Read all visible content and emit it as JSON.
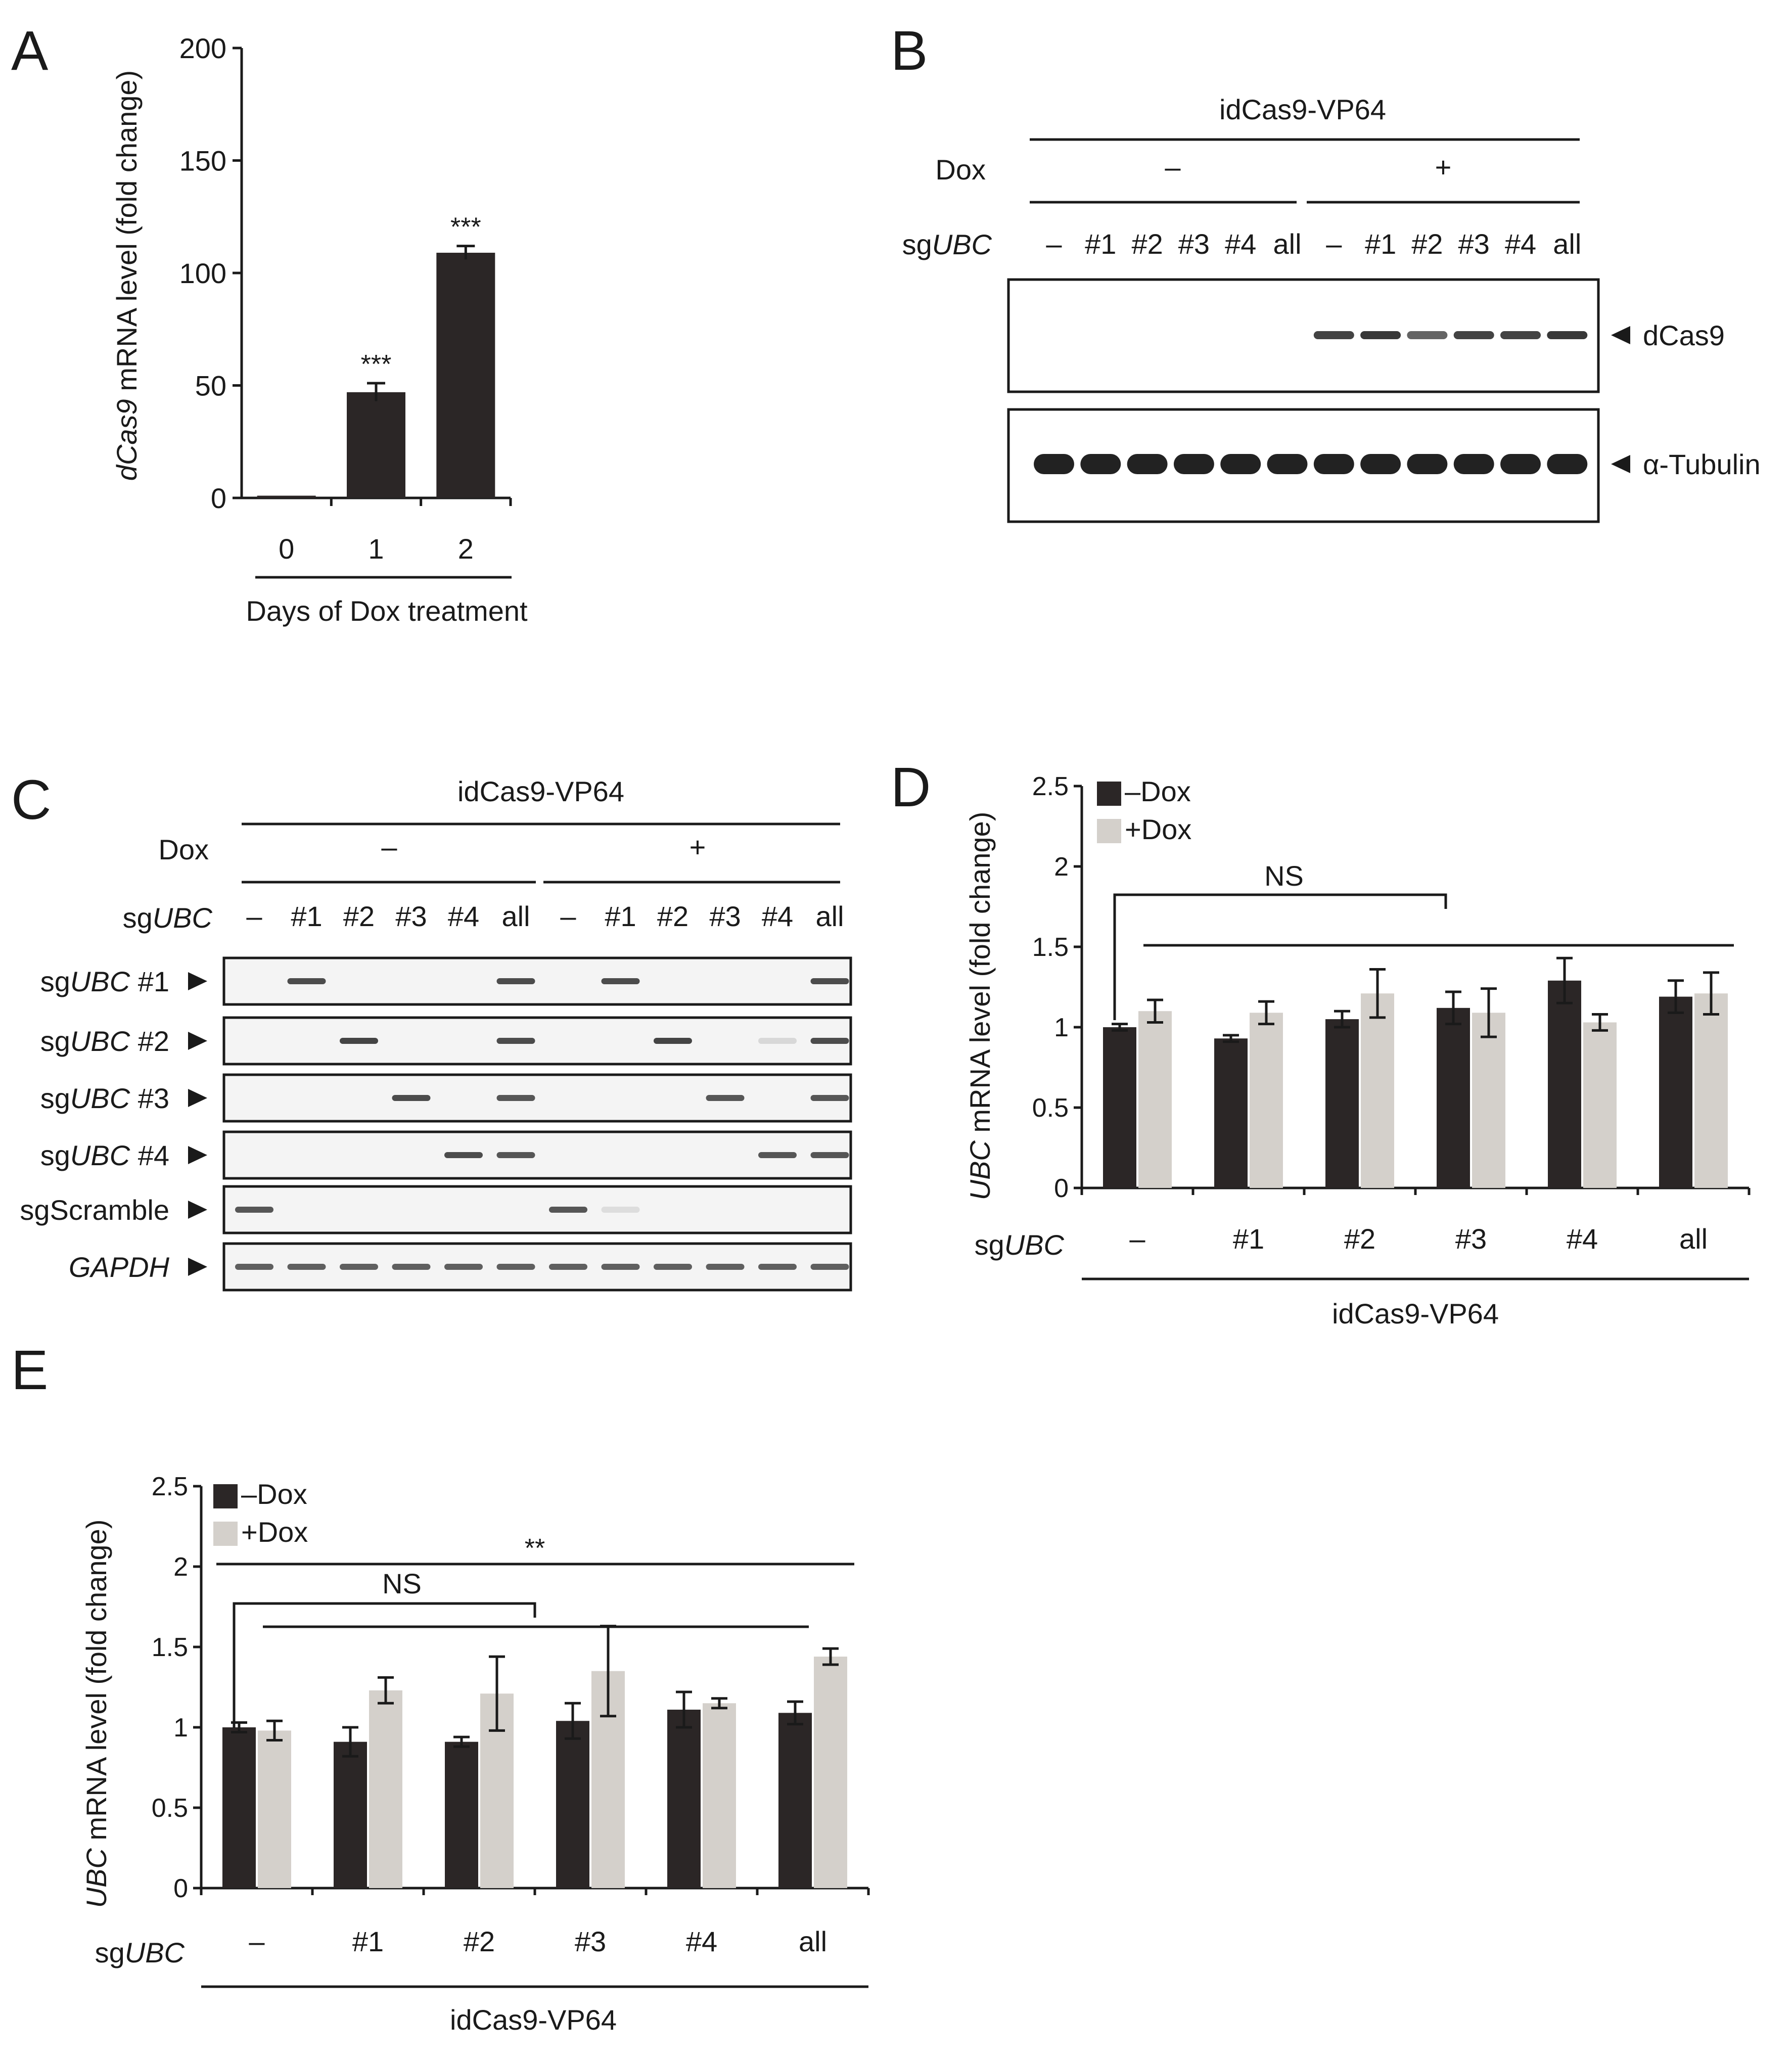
{
  "colors": {
    "dark": "#2b2626",
    "light": "#d4d0cb",
    "ink": "#1a1a1a",
    "band": "#222222"
  },
  "panels": {
    "A": {
      "letter": "A"
    },
    "B": {
      "letter": "B"
    },
    "C": {
      "letter": "C"
    },
    "D": {
      "letter": "D"
    },
    "E": {
      "letter": "E"
    }
  },
  "panel_b": {
    "construct": "idCas9-VP64",
    "dox_label": "Dox",
    "dox_minus": "–",
    "dox_plus": "+",
    "sg_prefix": "sg",
    "sg_gene": "UBC",
    "lanes": [
      "–",
      "#1",
      "#2",
      "#3",
      "#4",
      "all",
      "–",
      "#1",
      "#2",
      "#3",
      "#4",
      "all"
    ],
    "blots": [
      {
        "label": "dCas9",
        "band_intensity": [
          0,
          0,
          0,
          0,
          0,
          0,
          0.85,
          0.9,
          0.7,
          0.85,
          0.85,
          0.9
        ]
      },
      {
        "label": "α-Tubulin",
        "band_intensity": [
          1,
          1,
          1,
          1,
          1,
          1,
          1,
          1,
          1,
          1,
          1,
          1
        ]
      }
    ]
  },
  "panel_c": {
    "construct": "idCas9-VP64",
    "dox_label": "Dox",
    "dox_minus": "–",
    "dox_plus": "+",
    "sg_prefix": "sg",
    "sg_gene": "UBC",
    "lanes": [
      "–",
      "#1",
      "#2",
      "#3",
      "#4",
      "all",
      "–",
      "#1",
      "#2",
      "#3",
      "#4",
      "all"
    ],
    "gel_rows": [
      {
        "prefix": "sg",
        "gene": "UBC",
        "suffix": " #1",
        "band_intensity": [
          0,
          0.9,
          0,
          0,
          0,
          0.9,
          0,
          0.9,
          0,
          0,
          0,
          0.9
        ]
      },
      {
        "prefix": "sg",
        "gene": "UBC",
        "suffix": " #2",
        "band_intensity": [
          0,
          0,
          0.95,
          0,
          0,
          0.9,
          0,
          0,
          0.95,
          0,
          0.15,
          0.9
        ]
      },
      {
        "prefix": "sg",
        "gene": "UBC",
        "suffix": " #3",
        "band_intensity": [
          0,
          0,
          0,
          0.9,
          0,
          0.85,
          0,
          0,
          0,
          0.85,
          0,
          0.85
        ]
      },
      {
        "prefix": "sg",
        "gene": "UBC",
        "suffix": " #4",
        "band_intensity": [
          0,
          0,
          0,
          0,
          0.9,
          0.85,
          0,
          0,
          0,
          0,
          0.85,
          0.85
        ]
      },
      {
        "prefix": "sgScramble",
        "gene": "",
        "suffix": "",
        "band_intensity": [
          0.85,
          0,
          0,
          0,
          0,
          0,
          0.85,
          0.12,
          0,
          0,
          0,
          0
        ]
      },
      {
        "prefix": "",
        "gene": "GAPDH",
        "suffix": "",
        "band_intensity": [
          0.8,
          0.8,
          0.8,
          0.8,
          0.8,
          0.8,
          0.8,
          0.8,
          0.8,
          0.8,
          0.8,
          0.8
        ]
      }
    ]
  },
  "chart_data": [
    {
      "panel": "A",
      "type": "bar",
      "categories": [
        "0",
        "1",
        "2"
      ],
      "values": [
        1,
        47,
        109
      ],
      "errors": [
        0,
        4,
        3
      ],
      "significance": [
        "",
        "***",
        "***"
      ],
      "ylabel_italic": "dCas9",
      "ylabel_rest": " mRNA level (fold change)",
      "xlabel": "Days of Dox treatment",
      "yticks": [
        0,
        50,
        100,
        150,
        200
      ],
      "ylim": [
        0,
        200
      ]
    },
    {
      "panel": "D",
      "type": "bar",
      "categories": [
        "–",
        "#1",
        "#2",
        "#3",
        "#4",
        "all"
      ],
      "series": [
        {
          "name": "–Dox",
          "values": [
            1.0,
            0.93,
            1.05,
            1.12,
            1.29,
            1.19
          ],
          "errors": [
            0.02,
            0.02,
            0.05,
            0.1,
            0.14,
            0.1
          ]
        },
        {
          "name": "+Dox",
          "values": [
            1.1,
            1.09,
            1.21,
            1.09,
            1.03,
            1.21
          ],
          "errors": [
            0.07,
            0.07,
            0.15,
            0.15,
            0.05,
            0.13
          ]
        }
      ],
      "ylabel_italic": "UBC",
      "ylabel_rest": " mRNA level (fold change)",
      "xlabel_prefix": "sg",
      "xlabel_gene": "UBC",
      "construct": "idCas9-VP64",
      "yticks": [
        0,
        0.5,
        1,
        1.5,
        2,
        2.5
      ],
      "ytick_labels": [
        "0",
        "0.5",
        "1",
        "1.5",
        "2",
        "2.5"
      ],
      "ylim": [
        0,
        2.5
      ],
      "annotations": [
        "NS"
      ]
    },
    {
      "panel": "E",
      "type": "bar",
      "categories": [
        "–",
        "#1",
        "#2",
        "#3",
        "#4",
        "all"
      ],
      "series": [
        {
          "name": "–Dox",
          "values": [
            1.0,
            0.91,
            0.91,
            1.04,
            1.11,
            1.09
          ],
          "errors": [
            0.03,
            0.09,
            0.03,
            0.11,
            0.11,
            0.07
          ]
        },
        {
          "name": "+Dox",
          "values": [
            0.98,
            1.23,
            1.21,
            1.35,
            1.15,
            1.44
          ],
          "errors": [
            0.06,
            0.08,
            0.23,
            0.28,
            0.03,
            0.05
          ]
        }
      ],
      "ylabel_italic": "UBC",
      "ylabel_rest": " mRNA level (fold change)",
      "xlabel_prefix": "sg",
      "xlabel_gene": "UBC",
      "construct": "idCas9-VP64",
      "yticks": [
        0,
        0.5,
        1,
        1.5,
        2,
        2.5
      ],
      "ytick_labels": [
        "0",
        "0.5",
        "1",
        "1.5",
        "2",
        "2.5"
      ],
      "ylim": [
        0,
        2.5
      ],
      "annotations": [
        "NS",
        "**"
      ]
    }
  ]
}
